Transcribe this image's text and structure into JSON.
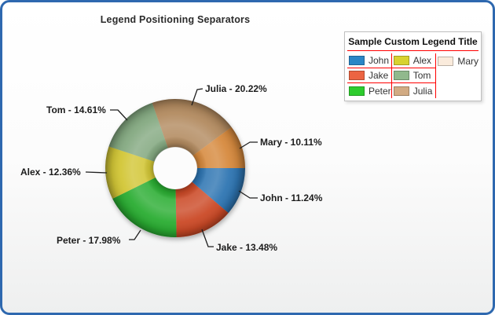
{
  "chart_data": {
    "type": "pie",
    "subtype": "donut",
    "title": "Legend Positioning Separators",
    "unit": "%",
    "label_format": "{name} - {percent}%",
    "start_angle_deg": 0,
    "direction": "clockwise",
    "slices": [
      {
        "name": "John",
        "percent": 11.24,
        "color": "#2d74b2",
        "legend_color": "#2b86c6"
      },
      {
        "name": "Jake",
        "percent": 13.48,
        "color": "#cb4a27",
        "legend_color": "#ec6442"
      },
      {
        "name": "Peter",
        "percent": 17.98,
        "color": "#2aad32",
        "legend_color": "#2ecc2e"
      },
      {
        "name": "Alex",
        "percent": 12.36,
        "color": "#d2c636",
        "legend_color": "#d8d22f"
      },
      {
        "name": "Tom",
        "percent": 14.61,
        "color": "#84a981",
        "legend_color": "#91b98d"
      },
      {
        "name": "Julia",
        "percent": 20.22,
        "color": "#b28a5e",
        "legend_color": "#d2ab83"
      },
      {
        "name": "Mary",
        "percent": 10.11,
        "color": "#d6893e",
        "legend_color": "#faebdc"
      }
    ],
    "legend": {
      "title": "Sample Custom Legend Title",
      "position": "top-right",
      "separator_color": "#ff0000",
      "columns": [
        [
          "John",
          "Jake",
          "Peter"
        ],
        [
          "Alex",
          "Tom",
          "Julia"
        ],
        [
          "Mary"
        ]
      ]
    },
    "panel": {
      "border_color": "#2e68af"
    }
  }
}
